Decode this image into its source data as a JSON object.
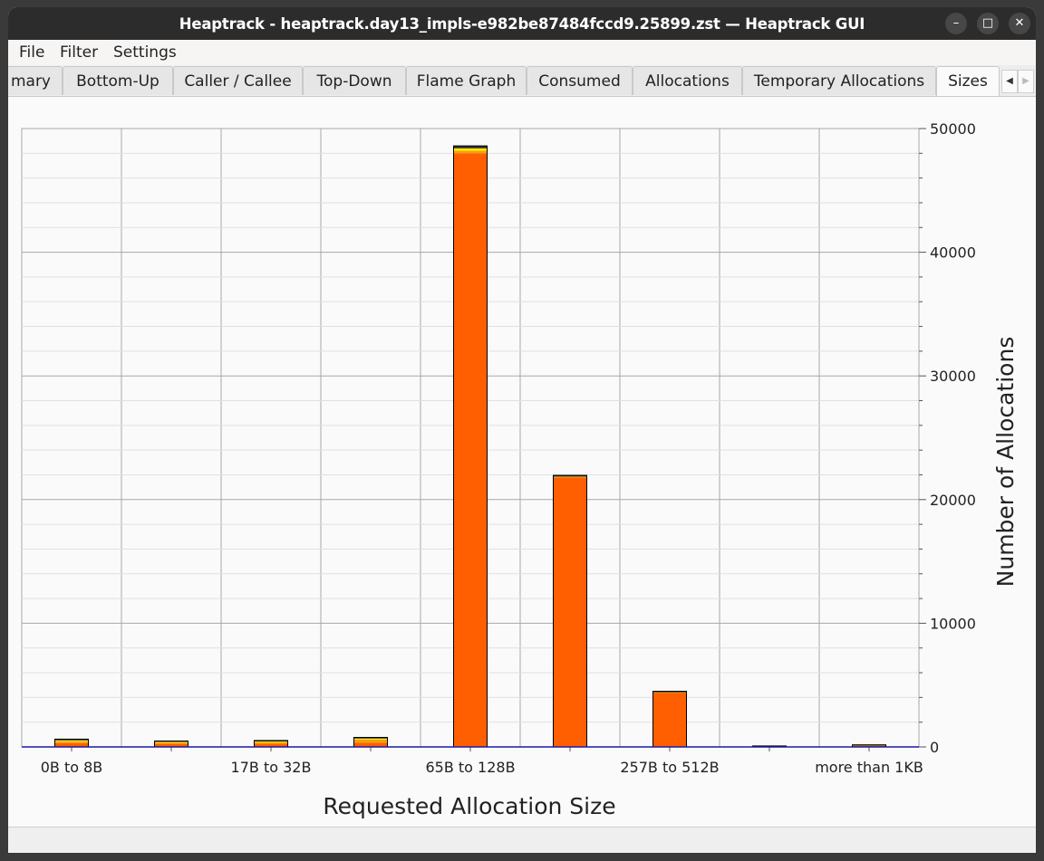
{
  "window": {
    "title": "Heaptrack - heaptrack.day13_impls-e982be87484fccd9.25899.zst — Heaptrack GUI",
    "minimize_glyph": "–",
    "maximize_glyph": "□",
    "close_glyph": "✕"
  },
  "menu": {
    "file": "File",
    "filter": "Filter",
    "settings": "Settings"
  },
  "tabs": {
    "summary": "mary",
    "bottom_up": "Bottom-Up",
    "caller_callee": "Caller / Callee",
    "top_down": "Top-Down",
    "flame_graph": "Flame Graph",
    "consumed": "Consumed",
    "allocations": "Allocations",
    "temporary_allocations": "Temporary Allocations",
    "sizes": "Sizes",
    "scroll_left_glyph": "◀",
    "scroll_right_glyph": "▶"
  },
  "chart_data": {
    "type": "bar",
    "xlabel": "Requested Allocation Size",
    "ylabel": "Number of Allocations",
    "ylim": [
      0,
      50000
    ],
    "y_ticks": [
      "0",
      "10000",
      "20000",
      "30000",
      "40000",
      "50000"
    ],
    "y_axis_position": "right",
    "grid": true,
    "categories": [
      "0B to 8B",
      "",
      "17B to 32B",
      "",
      "65B to 128B",
      "",
      "257B to 512B",
      "",
      "more than 1KB"
    ],
    "series": [
      {
        "values": [
          300,
          250,
          250,
          350,
          48000,
          21800,
          4400,
          50,
          100
        ]
      },
      {
        "values": [
          150,
          100,
          120,
          250,
          200,
          60,
          20,
          10,
          20
        ]
      },
      {
        "values": [
          80,
          60,
          70,
          80,
          200,
          0,
          0,
          0,
          0
        ]
      },
      {
        "values": [
          100,
          70,
          80,
          90,
          200,
          100,
          80,
          20,
          50
        ]
      }
    ],
    "colors": {
      "series": [
        "#ff5f00",
        "#f6a000",
        "#ffe400",
        "#333333"
      ],
      "grid": "#a8a8a8",
      "baseline": "#1a1aa6",
      "bar_outline": "#000000"
    }
  }
}
